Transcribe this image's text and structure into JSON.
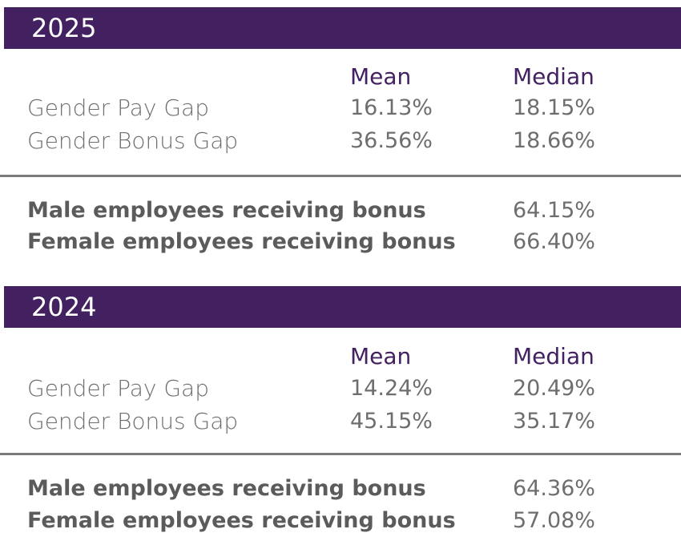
{
  "sections": [
    {
      "year": "2025",
      "headers": {
        "mean": "Mean",
        "median": "Median"
      },
      "gap_rows": [
        {
          "label": "Gender Pay Gap",
          "mean": "16.13%",
          "median": "18.15%"
        },
        {
          "label": "Gender Bonus Gap",
          "mean": "36.56%",
          "median": "18.66%"
        }
      ],
      "bonus_rows": [
        {
          "label": "Male employees receiving bonus",
          "value": "64.15%"
        },
        {
          "label": "Female employees receiving bonus",
          "value": "66.40%"
        }
      ]
    },
    {
      "year": "2024",
      "headers": {
        "mean": "Mean",
        "median": "Median"
      },
      "gap_rows": [
        {
          "label": "Gender Pay Gap",
          "mean": "14.24%",
          "median": "20.49%"
        },
        {
          "label": "Gender Bonus Gap",
          "mean": "45.15%",
          "median": "35.17%"
        }
      ],
      "bonus_rows": [
        {
          "label": "Male employees receiving bonus",
          "value": "64.36%"
        },
        {
          "label": "Female employees receiving bonus",
          "value": "57.08%"
        }
      ]
    }
  ],
  "colors": {
    "band": "#43205f",
    "header_text": "#43205f",
    "body_text": "#6e6e6e",
    "divider": "#7a7a7a"
  }
}
